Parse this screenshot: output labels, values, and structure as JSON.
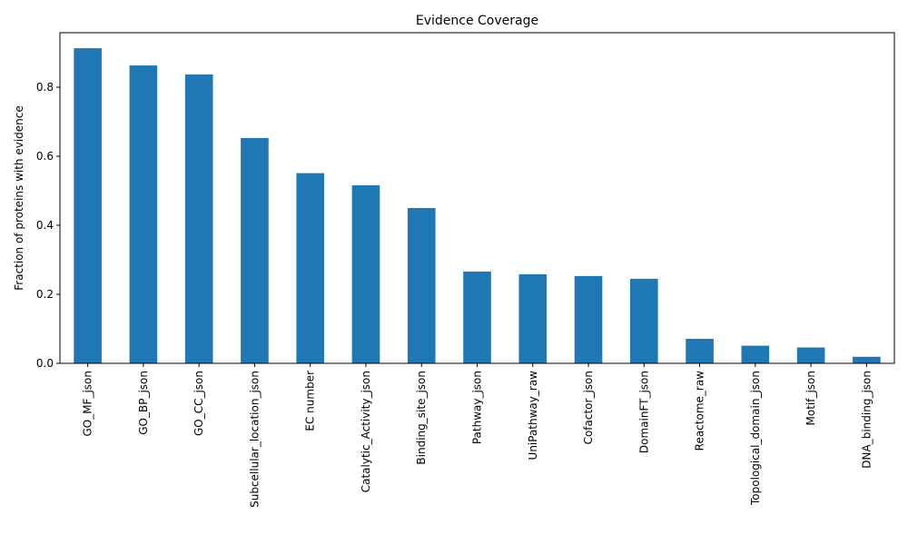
{
  "chart_data": {
    "type": "bar",
    "title": "Evidence Coverage",
    "xlabel": "",
    "ylabel": "Fraction of proteins with evidence",
    "categories": [
      "GO_MF_json",
      "GO_BP_json",
      "GO_CC_json",
      "Subcellular_location_json",
      "EC number",
      "Catalytic_Activity_json",
      "Binding_site_json",
      "Pathway_json",
      "UniPathway_raw",
      "Cofactor_json",
      "DomainFT_json",
      "Reactome_raw",
      "Topological_domain_json",
      "Motif_json",
      "DNA_binding_json"
    ],
    "values": [
      0.913,
      0.863,
      0.837,
      0.653,
      0.551,
      0.516,
      0.45,
      0.266,
      0.258,
      0.253,
      0.245,
      0.071,
      0.051,
      0.046,
      0.019
    ],
    "ylim": [
      0,
      0.958
    ],
    "yticks": [
      0.0,
      0.2,
      0.4,
      0.6,
      0.8
    ],
    "ytick_labels": [
      "0.0",
      "0.2",
      "0.4",
      "0.6",
      "0.8"
    ],
    "bar_color": "#1f77b4",
    "grid": false,
    "legend": "none"
  }
}
